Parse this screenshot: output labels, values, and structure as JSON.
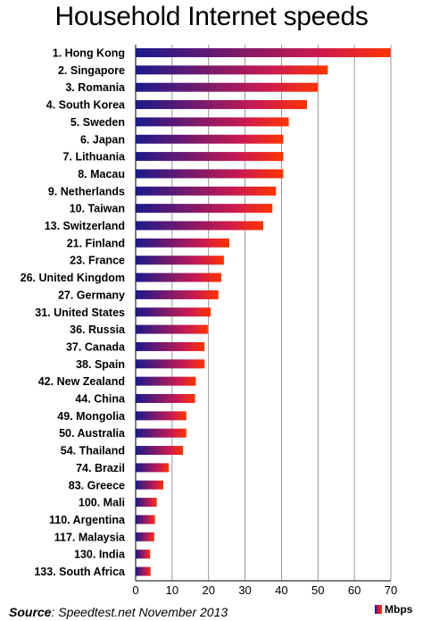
{
  "chart_data": {
    "type": "bar",
    "orientation": "horizontal",
    "title": "Household Internet speeds",
    "xlim": [
      0,
      70
    ],
    "xticks": [
      0,
      10,
      20,
      30,
      40,
      50,
      60,
      70
    ],
    "grid": true,
    "legend": {
      "label": "Mbps",
      "placement": "bottom-right"
    },
    "categories": [
      "1. Hong Kong",
      "2. Singapore",
      "3. Romania",
      "4. South Korea",
      "5. Sweden",
      "6. Japan",
      "7. Lithuania",
      "8. Macau",
      "9. Netherlands",
      "10. Taiwan",
      "13. Switzerland",
      "21. Finland",
      "23. France",
      "26. United Kingdom",
      "27. Germany",
      "31. United States",
      "36. Russia",
      "37. Canada",
      "38. Spain",
      "42. New Zealand",
      "44. China",
      "49. Mongolia",
      "50. Australia",
      "54. Thailand",
      "74. Brazil",
      "83. Greece",
      "100. Mali",
      "110. Argentina",
      "117. Malaysia",
      "130. India",
      "133. South Africa"
    ],
    "values": [
      69.9,
      52.7,
      50.0,
      47.0,
      42.0,
      40.5,
      40.5,
      40.5,
      38.5,
      37.5,
      35.0,
      25.7,
      24.2,
      23.5,
      22.7,
      20.6,
      19.8,
      18.9,
      18.9,
      16.5,
      16.3,
      13.9,
      13.9,
      13.0,
      9.1,
      7.6,
      5.8,
      5.3,
      5.1,
      4.0,
      4.1
    ],
    "bar_gradient": [
      "#1a1a8c",
      "#cc1a4f",
      "#ff3300"
    ]
  },
  "footer": {
    "source_label": "Source",
    "source_text": ": Speedtest.net  November 2013"
  }
}
